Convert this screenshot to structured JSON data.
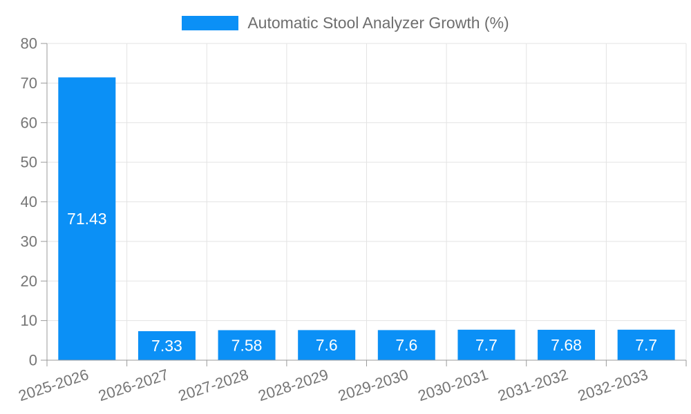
{
  "chart_data": {
    "type": "bar",
    "title": "Automatic Stool Analyzer Growth (%)",
    "legend_entries": [
      "Automatic Stool Analyzer Growth (%)"
    ],
    "legend_position": "top",
    "grid": true,
    "categories": [
      "2025-2026",
      "2026-2027",
      "2027-2028",
      "2028-2029",
      "2029-2030",
      "2030-2031",
      "2031-2032",
      "2032-2033"
    ],
    "series": [
      {
        "name": "Automatic Stool Analyzer Growth (%)",
        "values": [
          71.43,
          7.33,
          7.58,
          7.6,
          7.6,
          7.7,
          7.68,
          7.7
        ]
      }
    ],
    "value_labels": [
      "71.43",
      "7.33",
      "7.58",
      "7.6",
      "7.6",
      "7.7",
      "7.68",
      "7.7"
    ],
    "xlabel": "",
    "ylabel": "",
    "ylim": [
      0,
      80
    ],
    "yticks": [
      0,
      10,
      20,
      30,
      40,
      50,
      60,
      70,
      80
    ]
  },
  "colors": {
    "bar": "#0b90f6",
    "grid_line": "#e3e3e3",
    "axis_line": "#999999",
    "axis_text": "#757575",
    "legend_text": "#6e6e6e",
    "value_label_text": "#ffffff",
    "background": "#ffffff"
  }
}
